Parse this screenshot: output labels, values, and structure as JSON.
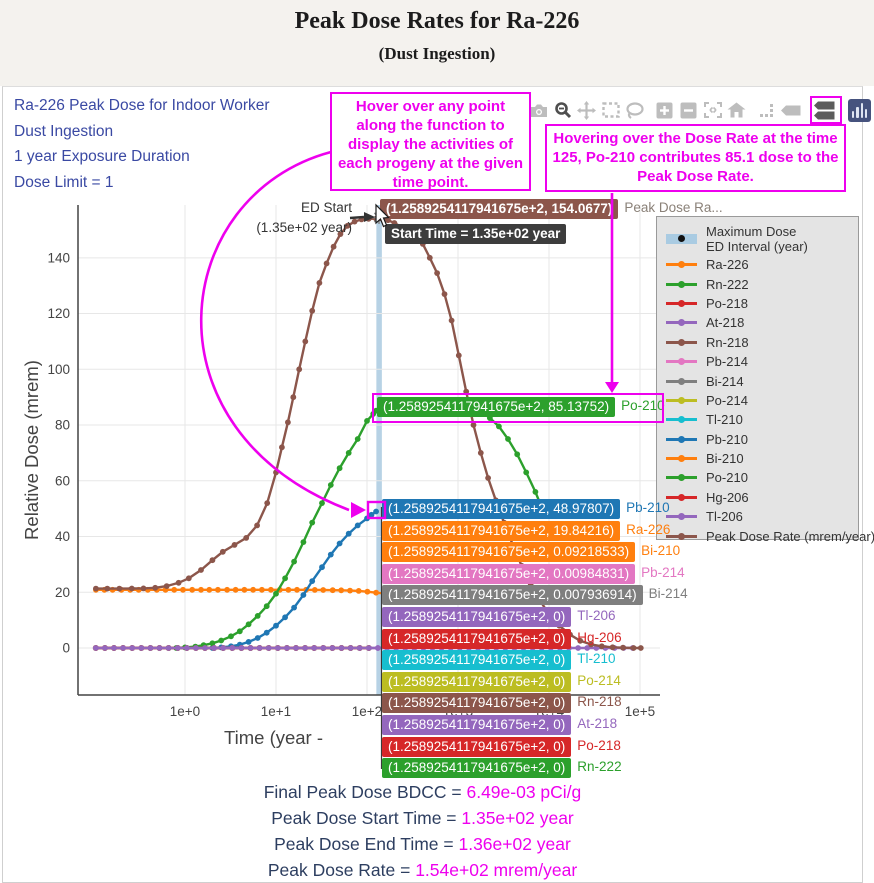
{
  "header": {
    "title": "Peak Dose Rates for Ra-226",
    "subtitle": "(Dust Ingestion)"
  },
  "info": {
    "lines": [
      "Ra-226 Peak Dose for Indoor Worker",
      "Dust Ingestion",
      "1 year Exposure Duration",
      "Dose Limit = 1"
    ]
  },
  "notes": {
    "hover_note": "Hover over any point along the function to display the activities of each progeny at the given time point.",
    "dose_note": "Hovering over the Dose Rate at the time 125, Po-210 contributes 85.1 dose to the Peak Dose Rate."
  },
  "toolbar": {
    "icons": [
      "camera",
      "zoom",
      "pan",
      "box-select",
      "lasso",
      "zoom-in",
      "zoom-out",
      "autoscale",
      "reset-home",
      "spike-lines",
      "hover-closest",
      "hover-compare",
      "plotly-logo"
    ],
    "accent": "#ee00ee"
  },
  "ed_annotation": {
    "line1": "ED Start",
    "line2": "(1.35e+02 year)"
  },
  "tooltips": {
    "x_text": "1.2589254117941675e+2",
    "peak": {
      "value": "154.0677",
      "name": "Peak Dose Ra...",
      "color": "#8c564b",
      "name_color": "#8a8178"
    },
    "start_time": {
      "text": "Start Time = 1.35e+02 year",
      "color": "#3d3d3d"
    },
    "highlight": {
      "value": "85.13752",
      "name": "Po-210",
      "color": "#2ca02c"
    },
    "stack": [
      {
        "name": "Pb-210",
        "value": "48.97807",
        "color": "#1f77b4"
      },
      {
        "name": "Ra-226",
        "value": "19.84216",
        "color": "#ff7f0e"
      },
      {
        "name": "Bi-210",
        "value": "0.09218533",
        "color": "#ff7f0e"
      },
      {
        "name": "Pb-214",
        "value": "0.00984831",
        "color": "#e377c2"
      },
      {
        "name": "Bi-214",
        "value": "0.007936914",
        "color": "#7f7f7f"
      },
      {
        "name": "Tl-206",
        "value": "0",
        "color": "#9467bd"
      },
      {
        "name": "Hg-206",
        "value": "0",
        "color": "#d62728"
      },
      {
        "name": "Tl-210",
        "value": "0",
        "color": "#17becf"
      },
      {
        "name": "Po-214",
        "value": "0",
        "color": "#bcbd22"
      },
      {
        "name": "Rn-218",
        "value": "0",
        "color": "#8c564b"
      },
      {
        "name": "At-218",
        "value": "0",
        "color": "#9467bd"
      },
      {
        "name": "Po-218",
        "value": "0",
        "color": "#d62728"
      },
      {
        "name": "Rn-222",
        "value": "0",
        "color": "#2ca02c"
      }
    ]
  },
  "legend": {
    "max_dose": {
      "line1": "Maximum Dose",
      "line2": "ED Interval (year)",
      "band_color": "#a9cbe2"
    },
    "entries": [
      {
        "label": "Ra-226",
        "color": "#ff7f0e"
      },
      {
        "label": "Rn-222",
        "color": "#2ca02c"
      },
      {
        "label": "Po-218",
        "color": "#d62728"
      },
      {
        "label": "At-218",
        "color": "#9467bd"
      },
      {
        "label": "Rn-218",
        "color": "#8c564b"
      },
      {
        "label": "Pb-214",
        "color": "#e377c2"
      },
      {
        "label": "Bi-214",
        "color": "#7f7f7f"
      },
      {
        "label": "Po-214",
        "color": "#bcbd22"
      },
      {
        "label": "Tl-210",
        "color": "#17becf"
      },
      {
        "label": "Pb-210",
        "color": "#1f77b4"
      },
      {
        "label": "Bi-210",
        "color": "#ff7f0e"
      },
      {
        "label": "Po-210",
        "color": "#2ca02c"
      },
      {
        "label": "Hg-206",
        "color": "#d62728"
      },
      {
        "label": "Tl-206",
        "color": "#9467bd"
      },
      {
        "label": "Peak Dose Rate (mrem/year)",
        "color": "#8c564b"
      }
    ]
  },
  "summary": {
    "rows": [
      {
        "label": "Final Peak Dose BDCC = ",
        "value": "6.49e-03 pCi/g"
      },
      {
        "label": "Peak Dose Start Time = ",
        "value": "1.35e+02 year"
      },
      {
        "label": "Peak Dose End Time = ",
        "value": "1.36e+02 year"
      },
      {
        "label": "Peak Dose Rate = ",
        "value": "1.54e+02 mrem/year"
      }
    ]
  },
  "chart_data": {
    "type": "line",
    "title": "Peak Dose Rates for Ra-226 (Dust Ingestion)",
    "xlabel": "Time (year - ",
    "ylabel": "Relative Dose (mrem)",
    "x_scale": "log",
    "x_tick_exponents": [
      0,
      1,
      2,
      3,
      4,
      5
    ],
    "y_ticks": [
      0,
      20,
      40,
      60,
      80,
      100,
      120,
      140
    ],
    "grid": true,
    "legend_position": "right",
    "hover_x": 125.89254117941675,
    "hover_values": {
      "Peak Dose Rate": 154.0677,
      "Po-210": 85.13752,
      "Pb-210": 48.97807,
      "Ra-226": 19.84216,
      "Bi-210": 0.09218533,
      "Pb-214": 0.00984831,
      "Bi-214": 0.007936914,
      "Tl-206": 0,
      "Hg-206": 0,
      "Tl-210": 0,
      "Po-214": 0,
      "Rn-218": 0,
      "At-218": 0,
      "Po-218": 0,
      "Rn-222": 0
    },
    "ed_interval": {
      "start_year": 135,
      "end_year": 136,
      "band_color": "#b7d2e5"
    },
    "series": [
      {
        "name": "Ra-226",
        "color": "#ff7f0e",
        "t": [
          0.105,
          0.13,
          0.16,
          0.2,
          0.25,
          0.31,
          0.39,
          0.49,
          0.61,
          0.76,
          0.95,
          1.2,
          1.5,
          1.85,
          2.3,
          2.9,
          3.6,
          4.5,
          5.6,
          7.0,
          8.8,
          11,
          13.7,
          17,
          21.4,
          26.7,
          33,
          42,
          52,
          65,
          81,
          101,
          126,
          158,
          198,
          247,
          309
        ],
        "v": [
          20.9,
          20.9,
          20.9,
          20.9,
          20.9,
          20.9,
          20.9,
          20.9,
          20.9,
          20.9,
          20.9,
          20.9,
          20.9,
          20.9,
          20.9,
          20.9,
          20.9,
          20.9,
          20.9,
          20.9,
          20.9,
          20.9,
          20.9,
          20.9,
          20.9,
          20.85,
          20.8,
          20.75,
          20.7,
          20.6,
          20.5,
          20.2,
          19.84,
          19.6,
          19.4,
          19.2,
          19.0
        ]
      },
      {
        "name": "Rn-222",
        "color": "#2ca02c",
        "flat": 0,
        "gen": [
          -0.98,
          2.1,
          10
        ]
      },
      {
        "name": "Po-218",
        "color": "#d62728",
        "flat": 0,
        "gen": [
          -0.98,
          2.1,
          10
        ]
      },
      {
        "name": "At-218",
        "color": "#9467bd",
        "flat": 0,
        "gen": [
          -0.98,
          2.6,
          10
        ]
      },
      {
        "name": "Rn-218",
        "color": "#8c564b",
        "flat": 0,
        "gen": [
          -0.98,
          2.1,
          10
        ]
      },
      {
        "name": "Pb-214",
        "color": "#e377c2",
        "flat": 0,
        "gen": [
          -0.98,
          2.1,
          10
        ]
      },
      {
        "name": "Bi-214",
        "color": "#7f7f7f",
        "flat": 0,
        "gen": [
          -0.98,
          2.1,
          10
        ]
      },
      {
        "name": "Po-214",
        "color": "#bcbd22",
        "flat": 0,
        "gen": [
          -0.98,
          2.1,
          10
        ]
      },
      {
        "name": "Tl-210",
        "color": "#17becf",
        "flat": 0,
        "gen": [
          -0.98,
          2.1,
          10
        ]
      },
      {
        "name": "Pb-210",
        "color": "#1f77b4",
        "t": [
          2,
          2.5,
          3.2,
          4,
          5,
          6.3,
          7.9,
          10,
          12.6,
          15.8,
          20,
          25,
          32,
          40,
          50,
          63,
          79,
          100,
          112,
          126
        ],
        "v": [
          0,
          0.2,
          0.6,
          1.2,
          2.2,
          3.6,
          5.5,
          8,
          11,
          14.5,
          19,
          24,
          29,
          33.5,
          37.5,
          41,
          44,
          46.5,
          47.8,
          48.98
        ]
      },
      {
        "name": "Bi-210",
        "color": "#ff7f0e",
        "flat": 0,
        "gen": [
          -0.98,
          2.1,
          10
        ]
      },
      {
        "name": "Po-210",
        "color": "#2ca02c",
        "t": [
          0.8,
          1,
          1.3,
          1.6,
          2,
          2.5,
          3.2,
          4,
          5,
          6.3,
          7.9,
          10,
          12.6,
          15.8,
          20,
          25,
          32,
          40,
          50,
          63,
          79,
          100,
          117,
          126,
          141,
          178,
          224,
          282,
          355,
          447,
          562,
          708,
          891,
          1122,
          1413,
          1778,
          2239,
          2818,
          3548,
          4467,
          5623,
          7080,
          8910
        ],
        "v": [
          0,
          0.2,
          0.5,
          1,
          1.7,
          2.7,
          4.2,
          6,
          8.5,
          11.5,
          15,
          19.5,
          25,
          31,
          38,
          45,
          52,
          58.5,
          64.5,
          70,
          75,
          81.5,
          84,
          85.14,
          85.9,
          86.9,
          87.6,
          88.1,
          88.4,
          88.5,
          88.4,
          88.2,
          87.8,
          87.2,
          86.3,
          85,
          82.5,
          79.5,
          75,
          69.5,
          63,
          56,
          48
        ]
      },
      {
        "name": "Hg-206",
        "color": "#d62728",
        "flat": 0,
        "gen": [
          -0.98,
          2.1,
          10
        ]
      },
      {
        "name": "Tl-206",
        "color": "#9467bd",
        "flat": 0,
        "gen": [
          -0.98,
          5.0,
          10
        ]
      },
      {
        "name": "Peak Dose Rate (mrem/year)",
        "color": "#8c564b",
        "t": [
          0.105,
          0.14,
          0.19,
          0.26,
          0.35,
          0.47,
          0.63,
          0.85,
          1.1,
          1.5,
          2,
          2.6,
          3.5,
          4.7,
          6.2,
          8,
          10,
          11.6,
          13.5,
          15.5,
          18,
          21,
          25,
          30,
          36,
          43,
          51,
          61,
          73,
          87,
          104,
          126,
          136,
          150,
          170,
          200,
          240,
          285,
          340,
          410,
          490,
          590,
          710,
          850,
          1020,
          1230,
          1480,
          1780,
          2140,
          2600,
          3200,
          4000,
          5000,
          6300,
          8000,
          10000,
          13000,
          17000,
          22000,
          29000,
          38000,
          50000,
          65000,
          85000,
          102000
        ],
        "v": [
          21.3,
          21.3,
          21.3,
          21.35,
          21.4,
          21.6,
          22.2,
          23.4,
          25,
          28,
          31.5,
          34.5,
          37,
          39.5,
          44,
          52,
          63,
          72,
          81,
          90,
          100,
          110,
          121,
          131,
          138,
          144,
          148.5,
          151.5,
          153,
          153.8,
          154,
          154.05,
          154.1,
          154,
          153.5,
          152.5,
          151,
          149.5,
          148.5,
          145,
          140,
          134.5,
          127,
          117.5,
          105,
          92,
          80,
          70,
          61,
          53,
          45,
          37,
          29.5,
          23,
          17,
          12,
          8,
          4.8,
          2.6,
          1.3,
          0.6,
          0.25,
          0.1,
          0,
          0
        ]
      }
    ]
  }
}
